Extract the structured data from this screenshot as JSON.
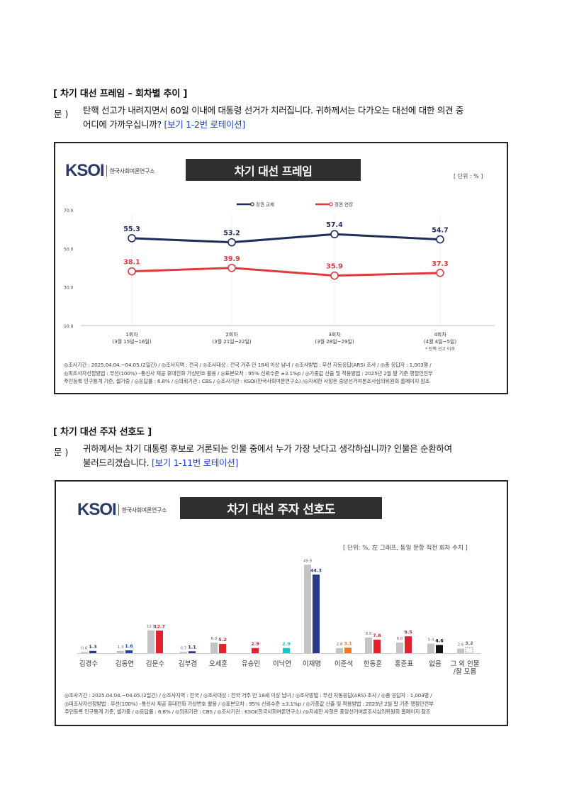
{
  "section1": {
    "title": "[ 차기 대선 프레임 – 회차별 추이 ]",
    "q_prefix": "문 )",
    "q_line1": "탄핵 선고가 내려지면서 60일 이내에 대통령 선거가 치러집니다. 귀하께서는 다가오는 대선에 대한 의견 중",
    "q_line2": "어디에 가까우십니까?",
    "q_rotation": "[보기 1-2번 로테이션]",
    "logo_main": "KSOI",
    "logo_sub": "한국사회여론연구소",
    "chart_title": "차기 대선 프레임",
    "unit": "[ 단위 : % ]",
    "footnote": "* 탄핵 선고 이후",
    "footer_lines": [
      "◎조사기간 : 2025.04.04.~04.05.(2일간) / ◎조사지역 : 전국 / ◎조사대상 : 전국 거주 만 18세 이상 남녀 / ◎조사방법 : 무선 자동응답(ARS) 조사 / ◎총 응답자 : 1,003명 /",
      "◎피조사자선정방법 : 무선(100%) –통신사 제공 휴대전화 가상번호 활용 / ◎표본오차 : 95% 신뢰수준 ±3.1%p / ◎가중값 산출 및 적용방법 : 2025년 2월 말 기준 행정안전부",
      "주민등록 인구통계 기준, 셀가중 / ◎응답률 : 6.8% / ◎의뢰기관 : CBS / ◎조사기관 : KSOI(한국사회여론연구소) /◎자세한 사항은 중앙선거여론조사심의위원회 홈페이지 참조"
    ]
  },
  "section2": {
    "title": "[ 차기 대선 주자 선호도 ]",
    "q_prefix": "문 )",
    "q_line1": "귀하께서는 차기 대통령 후보로 거론되는 인물 중에서 누가 가장 낫다고 생각하십니까? 인물은 순환하여",
    "q_line2": "불러드리겠습니다.",
    "q_rotation": "[보기 1-11번 로테이션]",
    "logo_main": "KSOI",
    "logo_sub": "한국사회여론연구소",
    "chart_title": "차기 대선 주자 선호도",
    "unit": "[ 단위: %, 左 그래프, 동일 문항 직전 회차 수치 ]",
    "footer_lines": [
      "◎조사기간 : 2025.04.04.~04.05.(2일간) / ◎조사지역 : 전국 / ◎조사대상 : 전국 거주 만 18세 이상 남녀 / ◎조사방법 : 무선 자동응답(ARS) 조사 / ◎총 응답자 : 1,003명 /",
      "◎피조사자선정방법 : 무선(100%) –통신사 제공 휴대전화 가상번호 활용 / ◎표본오차 : 95% 신뢰수준 ±3.1%p / ◎가중값 산출 및 적용방법 : 2025년 2월 말 기준 행정안전부",
      "주민등록 인구통계 기준, 셀가중 / ◎응답률 : 6.8% / ◎의뢰기관 : CBS / ◎조사기관 : KSOI(한국사회여론연구소) /◎자세한 사항은 중앙선거여론조사심의위원회 홈페이지 참조"
    ]
  },
  "chart_data": [
    {
      "type": "line",
      "title": "차기 대선 프레임",
      "x": [
        [
          "1회차",
          "(3월 15일~16일)"
        ],
        [
          "2회차",
          "(3월 21일~22일)"
        ],
        [
          "3회차",
          "(3월 28일~29일)"
        ],
        [
          "4회차",
          "(4월 4일~5일)"
        ]
      ],
      "series": [
        {
          "name": "정권 교체",
          "color": "#1f2d5c",
          "values": [
            55.3,
            53.2,
            57.4,
            54.7
          ]
        },
        {
          "name": "정권 연장",
          "color": "#e0393e",
          "values": [
            38.1,
            39.9,
            35.9,
            37.3
          ]
        }
      ],
      "yticks": [
        "70.0",
        "50.0",
        "30.0",
        "10.0"
      ],
      "ylim": [
        10,
        70
      ],
      "legend": "top-center",
      "grid": false
    },
    {
      "type": "bar",
      "title": "차기 대선 주자 선호도",
      "categories": [
        "김경수",
        "김동연",
        "김문수",
        "김부겸",
        "오세훈",
        "유승민",
        "이낙연",
        "이재명",
        "이준석",
        "한동훈",
        "홍준표",
        "없음",
        "그 외 인물\n/잘 모름"
      ],
      "series": [
        {
          "role": "previous",
          "values": [
            0.6,
            1.3,
            12.9,
            0.7,
            6.0,
            null,
            null,
            49.9,
            2.8,
            8.8,
            6.0,
            5.4,
            2.6
          ]
        },
        {
          "role": "current",
          "values": [
            1.3,
            1.6,
            12.7,
            1.1,
            5.2,
            2.9,
            2.9,
            44.3,
            3.1,
            7.6,
            9.5,
            4.6,
            3.2
          ]
        }
      ],
      "current_colors": [
        "#2a3a8a",
        "#1e4aa8",
        "#e0232f",
        "#2a3a8a",
        "#e0232f",
        "#e0232f",
        "#1ec3c3",
        "#2a3a8a",
        "#f07a24",
        "#e0232f",
        "#e0232f",
        "#111111",
        "#bbbbbb"
      ],
      "previous_color": "#c4c4c4",
      "ylim": [
        0,
        52
      ]
    }
  ]
}
